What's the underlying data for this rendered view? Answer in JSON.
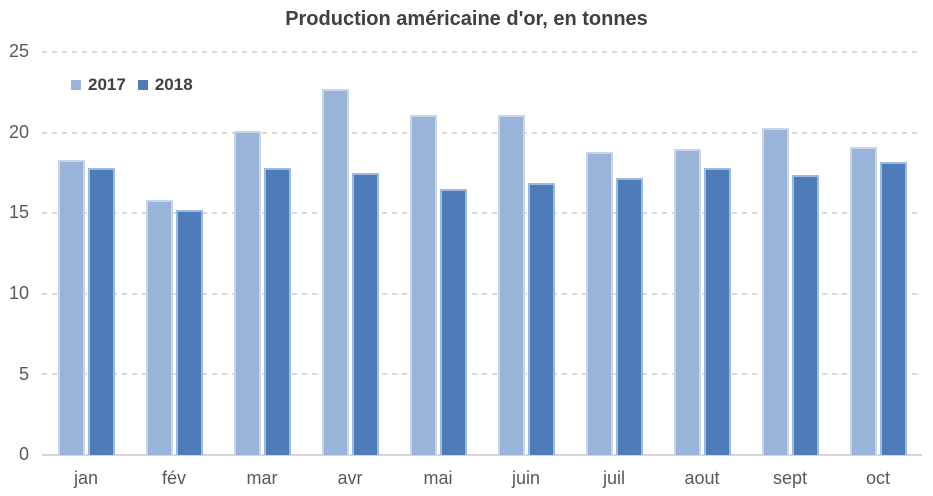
{
  "chart_data": {
    "type": "bar",
    "title": "Production américaine d'or, en tonnes",
    "categories": [
      "jan",
      "fév",
      "mar",
      "avr",
      "mai",
      "juin",
      "juil",
      "aout",
      "sept",
      "oct"
    ],
    "series": [
      {
        "name": "2017",
        "color": "#99b4d8",
        "border_color": "#c6d5ea",
        "values": [
          18.3,
          15.8,
          20.1,
          22.7,
          21.1,
          21.1,
          18.8,
          19.0,
          20.3,
          19.1
        ]
      },
      {
        "name": "2018",
        "color": "#4e7cb8",
        "border_color": "#9cbade",
        "values": [
          17.8,
          15.2,
          17.8,
          17.5,
          16.5,
          16.9,
          17.2,
          17.8,
          17.4,
          18.2
        ]
      }
    ],
    "xlabel": "",
    "ylabel": "",
    "ylim": [
      0,
      25
    ],
    "yticks": [
      0,
      5,
      10,
      15,
      20,
      25
    ],
    "grid": "dashed-horizontal",
    "legend_position": "top-left",
    "legend_labels": [
      "2017",
      "2018"
    ]
  },
  "colors": {
    "background": "#ffffff",
    "title_text": "#404040",
    "axis_label_text": "#595959",
    "gridline": "#d9d9d9",
    "axis_line": "#d6d6d6",
    "series_2017": "#99b4d8",
    "series_2018": "#4e7cb8"
  }
}
